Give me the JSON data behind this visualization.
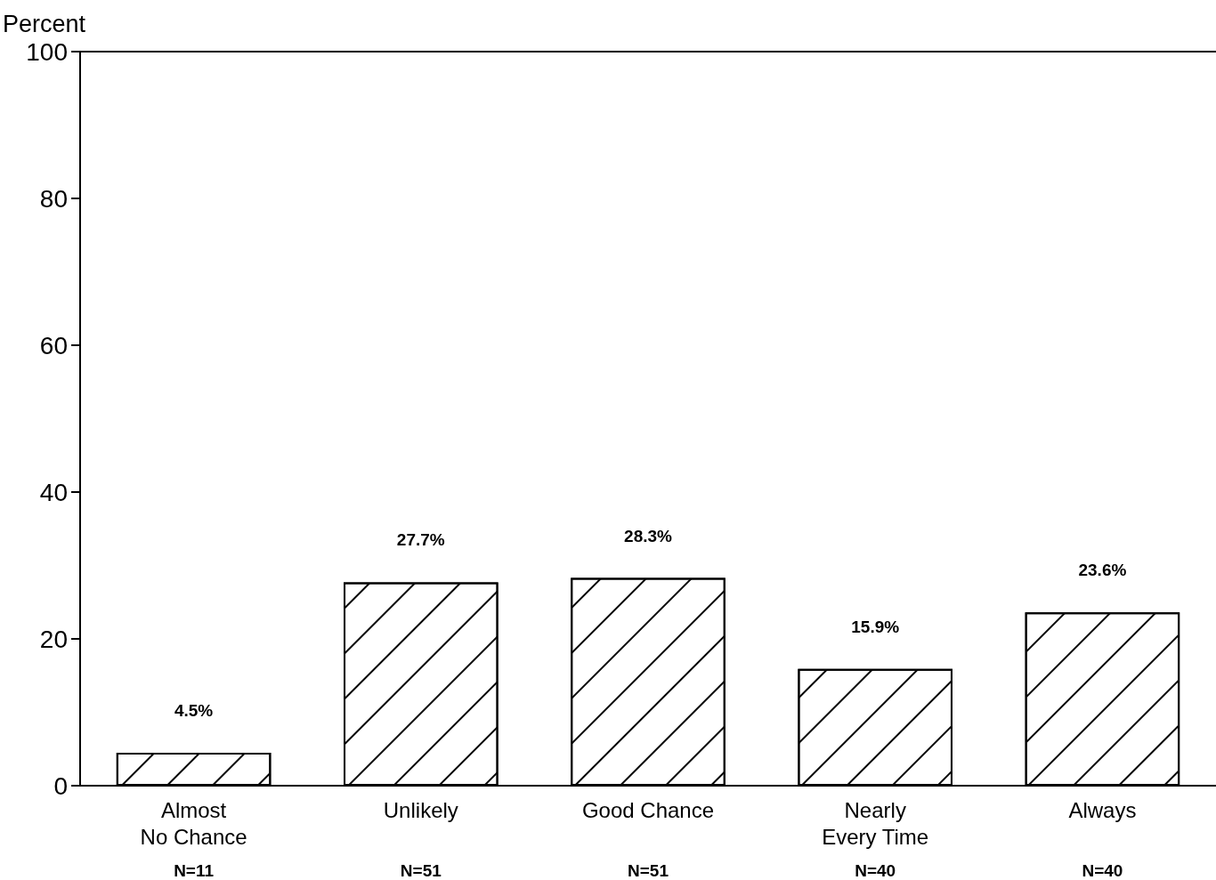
{
  "chart_data": {
    "type": "bar",
    "ylabel": "Percent",
    "categories": [
      "Almost\nNo Chance",
      "Unlikely",
      "Good Chance",
      "Nearly\nEvery Time",
      "Always"
    ],
    "values": [
      4.5,
      27.7,
      28.3,
      15.9,
      23.6
    ],
    "value_labels": [
      "4.5%",
      "27.7%",
      "28.3%",
      "15.9%",
      "23.6%"
    ],
    "color": "#ffffff",
    "ylim": [
      0,
      100
    ],
    "yticks": [
      0,
      20,
      40,
      60,
      80,
      100
    ],
    "grid": false,
    "annotations": [
      "N=11",
      "N=51",
      "N=51",
      "N=40",
      "N=40"
    ]
  }
}
